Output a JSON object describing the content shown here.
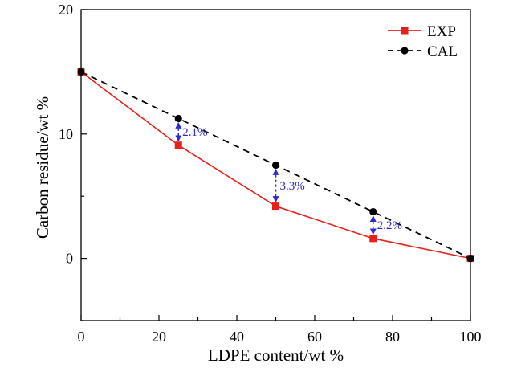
{
  "chart_data": {
    "type": "line",
    "xlabel": "LDPE content/wt %",
    "ylabel": "Carbon residue/wt %",
    "xlim": [
      0,
      100
    ],
    "ylim": [
      -5,
      20
    ],
    "xticks": [
      0,
      20,
      40,
      60,
      80,
      100
    ],
    "yticks": [
      0,
      10,
      20
    ],
    "grid": false,
    "legend_position": "top-right",
    "series": [
      {
        "name": "EXP",
        "color": "#e8201a",
        "line_style": "solid",
        "marker": "square",
        "x": [
          0,
          25,
          50,
          75,
          100
        ],
        "y": [
          15.0,
          9.1,
          4.2,
          1.6,
          0.0
        ]
      },
      {
        "name": "CAL",
        "color": "#000000",
        "line_style": "dashed",
        "marker": "circle",
        "x": [
          0,
          25,
          50,
          75,
          100
        ],
        "y": [
          15.0,
          11.25,
          7.5,
          3.75,
          0.0
        ]
      }
    ],
    "annotations": [
      {
        "text": "2.1%",
        "x": 25,
        "y_from": 9.1,
        "y_to": 11.25,
        "color": "#2b2bd0"
      },
      {
        "text": "3.3%",
        "x": 50,
        "y_from": 4.2,
        "y_to": 7.5,
        "color": "#2b2bd0"
      },
      {
        "text": "2.2%",
        "x": 75,
        "y_from": 1.6,
        "y_to": 3.75,
        "color": "#2b2bd0"
      }
    ]
  }
}
